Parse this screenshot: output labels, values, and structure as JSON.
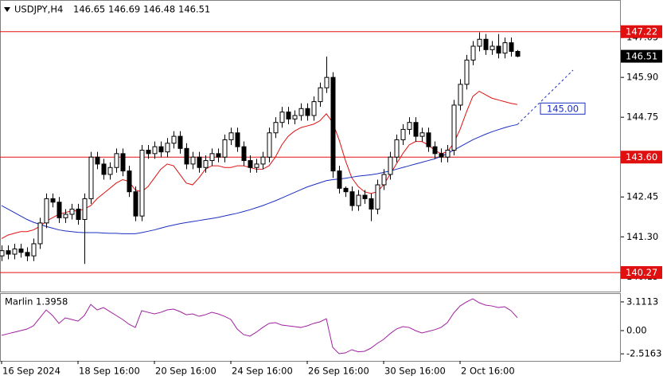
{
  "chart_data": {
    "type": "candlestick",
    "symbol": "USDJPY,H4",
    "categories": [
      "16 Sep 2024",
      null,
      null,
      null,
      null,
      null,
      null,
      null,
      null,
      null,
      null,
      null,
      "18 Sep 16:00",
      null,
      null,
      null,
      null,
      null,
      null,
      null,
      null,
      null,
      null,
      null,
      "20 Sep 16:00",
      null,
      null,
      null,
      null,
      null,
      null,
      null,
      null,
      null,
      null,
      null,
      "24 Sep 16:00",
      null,
      null,
      null,
      null,
      null,
      null,
      null,
      null,
      null,
      null,
      null,
      "26 Sep 16:00",
      null,
      null,
      null,
      null,
      null,
      null,
      null,
      null,
      null,
      null,
      null,
      "30 Sep 16:00",
      null,
      null,
      null,
      null,
      null,
      null,
      null,
      null,
      null,
      null,
      null,
      "2 Oct 16:00",
      null,
      null,
      null,
      null,
      null,
      null,
      null,
      null,
      null
    ],
    "open": [
      140.75,
      140.9,
      140.8,
      140.95,
      140.85,
      140.75,
      141.1,
      141.7,
      142.4,
      142.3,
      141.85,
      141.95,
      142.1,
      141.8,
      142.4,
      143.6,
      143.4,
      143.1,
      143.3,
      143.7,
      143.2,
      142.6,
      141.9,
      143.8,
      143.7,
      143.9,
      143.75,
      144.0,
      144.2,
      143.85,
      143.4,
      143.6,
      143.3,
      143.5,
      143.7,
      143.6,
      144.1,
      144.3,
      143.9,
      143.5,
      143.3,
      143.4,
      143.6,
      144.3,
      144.6,
      144.9,
      144.7,
      144.8,
      145.0,
      144.8,
      145.2,
      145.6,
      145.9,
      143.2,
      142.7,
      142.6,
      142.2,
      142.5,
      142.4,
      142.1,
      142.8,
      143.1,
      143.6,
      144.1,
      144.4,
      144.6,
      144.2,
      144.3,
      143.9,
      143.7,
      143.6,
      143.8,
      145.1,
      145.7,
      146.4,
      146.8,
      147.0,
      146.7,
      146.8,
      146.6,
      146.9,
      146.65
    ],
    "high": [
      141.05,
      141.05,
      141.1,
      141.1,
      141.0,
      141.25,
      141.85,
      142.55,
      142.55,
      142.45,
      142.1,
      142.25,
      142.25,
      142.55,
      143.75,
      143.75,
      143.55,
      143.45,
      143.85,
      143.85,
      143.35,
      142.75,
      143.95,
      143.95,
      144.05,
      144.05,
      144.15,
      144.35,
      144.35,
      144.0,
      143.75,
      143.75,
      143.65,
      143.85,
      143.85,
      144.25,
      144.45,
      144.45,
      144.05,
      143.65,
      143.55,
      143.75,
      144.45,
      144.75,
      145.05,
      145.05,
      144.95,
      145.15,
      145.15,
      145.35,
      145.75,
      146.5,
      146.05,
      143.35,
      142.75,
      142.75,
      142.65,
      142.65,
      142.55,
      142.95,
      143.25,
      143.75,
      144.25,
      144.55,
      144.75,
      144.75,
      144.45,
      144.45,
      144.05,
      143.85,
      143.95,
      145.25,
      145.85,
      146.55,
      146.95,
      147.2,
      147.15,
      146.95,
      147.15,
      147.05,
      147.05,
      146.69
    ],
    "low": [
      140.6,
      140.65,
      140.65,
      140.7,
      140.6,
      140.6,
      140.95,
      141.55,
      142.15,
      141.7,
      141.7,
      141.8,
      141.65,
      140.52,
      142.25,
      143.25,
      142.95,
      142.95,
      143.15,
      143.05,
      142.45,
      141.75,
      141.75,
      143.55,
      143.55,
      143.6,
      143.6,
      143.85,
      143.7,
      143.25,
      143.25,
      143.15,
      143.15,
      143.35,
      143.45,
      143.45,
      143.95,
      143.75,
      143.35,
      143.15,
      143.15,
      143.25,
      143.45,
      144.15,
      144.45,
      144.55,
      144.55,
      144.65,
      144.65,
      144.65,
      145.05,
      145.45,
      143.0,
      142.55,
      142.45,
      142.05,
      142.05,
      142.25,
      141.75,
      141.95,
      142.65,
      142.95,
      143.45,
      143.95,
      144.25,
      144.05,
      144.05,
      143.75,
      143.55,
      143.45,
      143.45,
      143.65,
      144.95,
      145.55,
      146.25,
      146.65,
      146.55,
      146.55,
      146.45,
      146.45,
      146.5,
      146.48
    ],
    "close": [
      140.9,
      140.8,
      140.95,
      140.85,
      140.75,
      141.1,
      141.7,
      142.4,
      142.3,
      141.85,
      141.95,
      142.1,
      141.8,
      142.4,
      143.6,
      143.4,
      143.1,
      143.3,
      143.7,
      143.2,
      142.6,
      141.9,
      143.8,
      143.7,
      143.9,
      143.75,
      144.0,
      144.2,
      143.85,
      143.4,
      143.6,
      143.3,
      143.5,
      143.7,
      143.6,
      144.1,
      144.3,
      143.9,
      143.5,
      143.3,
      143.4,
      143.6,
      144.3,
      144.6,
      144.9,
      144.7,
      144.8,
      145.0,
      144.8,
      145.2,
      145.6,
      145.9,
      143.2,
      142.7,
      142.6,
      142.2,
      142.5,
      142.4,
      142.1,
      142.8,
      143.1,
      143.6,
      144.1,
      144.4,
      144.6,
      144.2,
      144.3,
      143.9,
      143.7,
      143.6,
      143.8,
      145.1,
      145.7,
      146.4,
      146.8,
      147.0,
      146.7,
      146.8,
      146.6,
      146.9,
      146.65,
      146.51
    ],
    "up_color": "#ffffff",
    "down_color": "#000000",
    "lines": [
      {
        "color": "#e01010",
        "values": [
          141.25,
          141.35,
          141.4,
          141.45,
          141.45,
          141.5,
          141.6,
          141.75,
          141.85,
          141.95,
          142.0,
          142.05,
          142.05,
          142.1,
          142.2,
          142.4,
          142.55,
          142.7,
          142.85,
          142.95,
          142.9,
          142.65,
          142.6,
          142.75,
          143.0,
          143.25,
          143.4,
          143.35,
          143.1,
          142.85,
          142.8,
          143.0,
          143.25,
          143.35,
          143.35,
          143.3,
          143.3,
          143.35,
          143.35,
          143.3,
          143.25,
          143.25,
          143.35,
          143.6,
          143.95,
          144.2,
          144.35,
          144.45,
          144.5,
          144.55,
          144.65,
          144.85,
          144.6,
          144.1,
          143.5,
          143.0,
          142.75,
          142.6,
          142.55,
          142.6,
          142.8,
          143.1,
          143.4,
          143.7,
          143.95,
          144.05,
          144.05,
          143.95,
          143.8,
          143.7,
          143.75,
          144.0,
          144.4,
          144.9,
          145.35,
          145.5,
          145.4,
          145.3,
          145.25,
          145.2,
          145.15,
          145.12
        ]
      },
      {
        "color": "#1a2fc0",
        "values": [
          142.2,
          142.1,
          142.0,
          141.9,
          141.8,
          141.72,
          141.66,
          141.6,
          141.55,
          141.5,
          141.47,
          141.45,
          141.43,
          141.42,
          141.42,
          141.42,
          141.41,
          141.4,
          141.4,
          141.39,
          141.39,
          141.39,
          141.42,
          141.46,
          141.5,
          141.55,
          141.6,
          141.64,
          141.68,
          141.71,
          141.74,
          141.77,
          141.8,
          141.83,
          141.86,
          141.9,
          141.94,
          141.98,
          142.03,
          142.08,
          142.14,
          142.2,
          142.27,
          142.34,
          142.42,
          142.5,
          142.58,
          142.66,
          142.74,
          142.8,
          142.86,
          142.92,
          142.95,
          142.97,
          142.99,
          143.02,
          143.05,
          143.07,
          143.09,
          143.12,
          143.16,
          143.2,
          143.25,
          143.3,
          143.35,
          143.4,
          143.45,
          143.5,
          143.55,
          143.62,
          143.7,
          143.8,
          143.9,
          144.0,
          144.1,
          144.18,
          144.26,
          144.33,
          144.39,
          144.45,
          144.5,
          144.54
        ]
      }
    ],
    "ylim": [
      139.72,
      148.11
    ],
    "yticks": [
      147.05,
      {
        "value": 145.9,
        "label": "145.90"
      },
      144.75,
      {
        "value": 143.6,
        "label": "143.60"
      },
      142.45,
      {
        "value": 141.3,
        "label": "141.30"
      },
      140.15
    ],
    "levels": [
      {
        "value": 147.22,
        "color": "#e01010"
      },
      {
        "value": 143.6,
        "label": "143.60",
        "color": "#e01010"
      },
      {
        "value": 140.27,
        "color": "#e01010"
      }
    ],
    "trendline": {
      "value": 145.0,
      "label": "145.00",
      "color": "#1a2fc0"
    },
    "indicator": {
      "title": "Marlin 1.3958",
      "color": "#a020a0",
      "values": [
        -0.52,
        -0.34,
        -0.17,
        0.0,
        0.17,
        0.52,
        1.38,
        2.24,
        1.64,
        0.78,
        1.38,
        1.21,
        1.03,
        1.64,
        2.84,
        2.24,
        2.5,
        2.07,
        1.64,
        1.21,
        0.69,
        0.34,
        2.16,
        1.98,
        1.81,
        1.98,
        2.24,
        2.33,
        2.07,
        1.72,
        1.81,
        1.55,
        1.72,
        1.98,
        1.81,
        1.55,
        1.21,
        0.17,
        -0.43,
        -0.6,
        -0.17,
        0.34,
        0.78,
        0.86,
        0.6,
        0.52,
        0.43,
        0.34,
        0.52,
        0.78,
        0.95,
        1.29,
        -1.81,
        -2.5,
        -2.41,
        -2.07,
        -2.3,
        -2.24,
        -1.9,
        -1.38,
        -0.95,
        -0.34,
        0.17,
        0.43,
        0.34,
        0.0,
        -0.26,
        -0.09,
        0.09,
        0.34,
        0.86,
        1.9,
        2.67,
        3.1,
        3.45,
        3.02,
        2.76,
        2.67,
        2.5,
        2.59,
        2.16,
        1.4
      ],
      "ylim": [
        -3.28,
        3.97
      ],
      "yticks": [
        3.1113,
        {
          "value": 0,
          "label": "0.00"
        },
        -2.5163
      ]
    }
  }
}
